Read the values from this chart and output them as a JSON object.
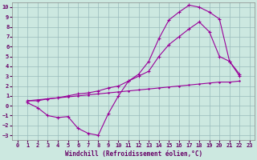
{
  "xlabel": "Windchill (Refroidissement éolien,°C)",
  "bg_color": "#cce8e0",
  "grid_color": "#99bbbb",
  "line_color": "#990099",
  "xlim": [
    -0.5,
    23.5
  ],
  "ylim": [
    -3.5,
    10.5
  ],
  "xticks": [
    0,
    1,
    2,
    3,
    4,
    5,
    6,
    7,
    8,
    9,
    10,
    11,
    12,
    13,
    14,
    15,
    16,
    17,
    18,
    19,
    20,
    21,
    22,
    23
  ],
  "yticks": [
    -3,
    -2,
    -1,
    0,
    1,
    2,
    3,
    4,
    5,
    6,
    7,
    8,
    9,
    10
  ],
  "line1_x": [
    1,
    2,
    3,
    4,
    5,
    6,
    7,
    8,
    9,
    10,
    11,
    12,
    13,
    14,
    15,
    16,
    17,
    18,
    19,
    20,
    21,
    22
  ],
  "line1_y": [
    0.3,
    -0.2,
    -1.0,
    -1.2,
    -1.1,
    -2.3,
    -2.8,
    -3.0,
    -0.8,
    1.0,
    2.5,
    3.2,
    4.5,
    6.8,
    8.7,
    9.5,
    10.2,
    10.0,
    9.5,
    8.8,
    4.5,
    3.0
  ],
  "line2_x": [
    1,
    2,
    3,
    4,
    5,
    6,
    7,
    8,
    9,
    10,
    11,
    12,
    13,
    14,
    15,
    16,
    17,
    18,
    19,
    20,
    21,
    22
  ],
  "line2_y": [
    0.5,
    0.5,
    0.7,
    0.8,
    1.0,
    1.2,
    1.3,
    1.5,
    1.8,
    2.0,
    2.5,
    3.0,
    3.5,
    5.0,
    6.2,
    7.0,
    7.8,
    8.5,
    7.5,
    5.0,
    4.5,
    3.2
  ],
  "line3_x": [
    1,
    2,
    3,
    4,
    5,
    6,
    7,
    8,
    9,
    10,
    11,
    12,
    13,
    14,
    15,
    16,
    17,
    18,
    19,
    20,
    21,
    22
  ],
  "line3_y": [
    0.5,
    0.6,
    0.7,
    0.8,
    0.9,
    1.0,
    1.1,
    1.2,
    1.3,
    1.4,
    1.5,
    1.6,
    1.7,
    1.8,
    1.9,
    2.0,
    2.1,
    2.2,
    2.3,
    2.4,
    2.4,
    2.5
  ]
}
